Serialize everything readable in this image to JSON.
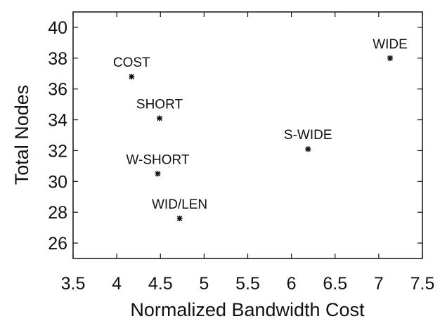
{
  "chart_data": {
    "type": "scatter",
    "title": "",
    "xlabel": "Normalized Bandwidth Cost",
    "ylabel": "Total Nodes",
    "xlim": [
      3.5,
      7.5
    ],
    "ylim": [
      25,
      41
    ],
    "xticks": [
      "3.5",
      "4",
      "4.5",
      "5",
      "5.5",
      "6",
      "6.5",
      "7",
      "7.5"
    ],
    "yticks": [
      "26",
      "28",
      "30",
      "32",
      "34",
      "36",
      "38",
      "40"
    ],
    "grid": false,
    "legend": "none",
    "marker": "asterisk",
    "points": [
      {
        "label": "COST",
        "x": 4.17,
        "y": 36.8
      },
      {
        "label": "SHORT",
        "x": 4.49,
        "y": 34.1
      },
      {
        "label": "W-SHORT",
        "x": 4.47,
        "y": 30.5
      },
      {
        "label": "WID/LEN",
        "x": 4.72,
        "y": 27.6
      },
      {
        "label": "S-WIDE",
        "x": 6.19,
        "y": 32.1
      },
      {
        "label": "WIDE",
        "x": 7.13,
        "y": 38.0
      }
    ]
  }
}
